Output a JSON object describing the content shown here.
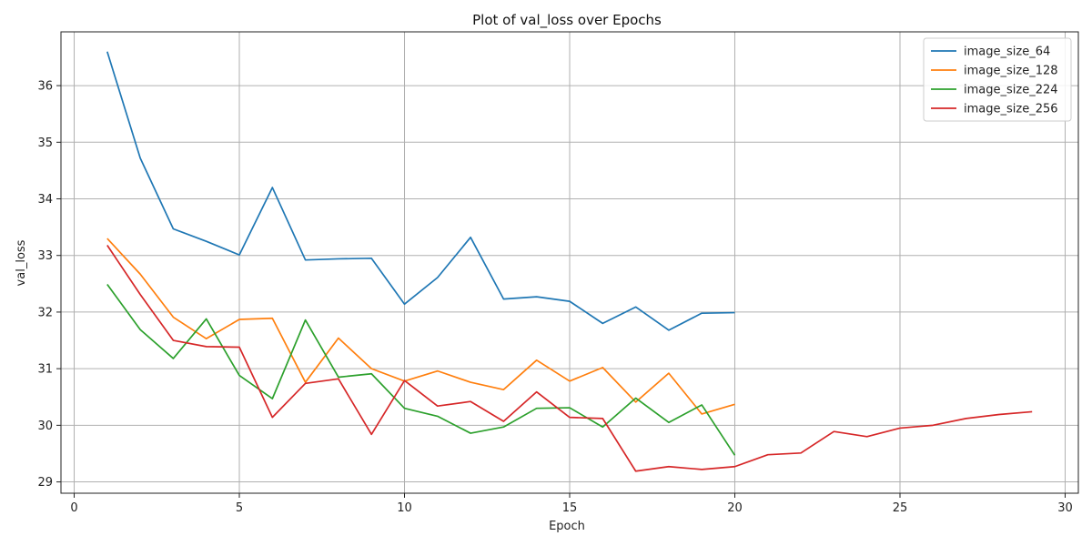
{
  "chart_data": {
    "type": "line",
    "title": "Plot of val_loss over Epochs",
    "xlabel": "Epoch",
    "ylabel": "val_loss",
    "xlim": [
      -0.4,
      30.4
    ],
    "ylim": [
      28.8,
      36.95
    ],
    "xticks": [
      0,
      5,
      10,
      15,
      20,
      25,
      30
    ],
    "yticks": [
      29,
      30,
      31,
      32,
      33,
      34,
      35,
      36
    ],
    "grid": true,
    "legend_position": "top-right",
    "series": [
      {
        "name": "image_size_64",
        "color": "#1f77b4",
        "x": [
          1,
          2,
          3,
          4,
          5,
          6,
          7,
          8,
          9,
          10,
          11,
          12,
          13,
          14,
          15,
          16,
          17,
          18,
          19,
          20
        ],
        "values": [
          36.6,
          34.72,
          33.47,
          33.25,
          33.01,
          34.2,
          32.92,
          32.94,
          32.95,
          32.14,
          32.61,
          33.32,
          32.23,
          32.27,
          32.19,
          31.8,
          32.09,
          31.68,
          31.98,
          31.99
        ]
      },
      {
        "name": "image_size_128",
        "color": "#ff7f0e",
        "x": [
          1,
          2,
          3,
          4,
          5,
          6,
          7,
          8,
          9,
          10,
          11,
          12,
          13,
          14,
          15,
          16,
          17,
          18,
          19,
          20
        ],
        "values": [
          33.3,
          32.67,
          31.91,
          31.53,
          31.87,
          31.89,
          30.76,
          31.54,
          31.0,
          30.78,
          30.96,
          30.76,
          30.63,
          31.15,
          30.78,
          31.02,
          30.41,
          30.92,
          30.2,
          30.37
        ]
      },
      {
        "name": "image_size_224",
        "color": "#2ca02c",
        "x": [
          1,
          2,
          3,
          4,
          5,
          6,
          7,
          8,
          9,
          10,
          11,
          12,
          13,
          14,
          15,
          16,
          17,
          18,
          19,
          20
        ],
        "values": [
          32.49,
          31.69,
          31.18,
          31.88,
          30.88,
          30.47,
          31.86,
          30.85,
          30.91,
          30.3,
          30.16,
          29.86,
          29.97,
          30.3,
          30.31,
          29.97,
          30.48,
          30.05,
          30.36,
          29.47
        ]
      },
      {
        "name": "image_size_256",
        "color": "#d62728",
        "x": [
          1,
          2,
          3,
          4,
          5,
          6,
          7,
          8,
          9,
          10,
          11,
          12,
          13,
          14,
          15,
          16,
          17,
          18,
          19,
          20,
          21,
          22,
          23,
          24,
          25,
          26,
          27,
          28,
          29
        ],
        "values": [
          33.18,
          32.31,
          31.5,
          31.39,
          31.38,
          30.14,
          30.74,
          30.82,
          29.84,
          30.79,
          30.34,
          30.42,
          30.07,
          30.59,
          30.14,
          30.12,
          29.19,
          29.27,
          29.22,
          29.27,
          29.48,
          29.51,
          29.89,
          29.8,
          29.95,
          30.0,
          30.12,
          30.19,
          30.24
        ]
      }
    ]
  }
}
